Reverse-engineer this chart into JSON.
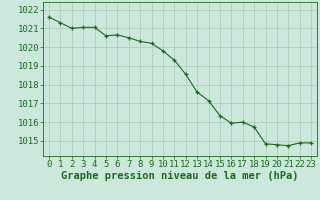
{
  "x": [
    0,
    1,
    2,
    3,
    4,
    5,
    6,
    7,
    8,
    9,
    10,
    11,
    12,
    13,
    14,
    15,
    16,
    17,
    18,
    19,
    20,
    21,
    22,
    23
  ],
  "y": [
    1021.6,
    1021.3,
    1021.0,
    1021.05,
    1021.05,
    1020.6,
    1020.65,
    1020.5,
    1020.3,
    1020.2,
    1019.8,
    1019.3,
    1018.55,
    1017.6,
    1017.15,
    1016.35,
    1015.95,
    1016.0,
    1015.75,
    1014.85,
    1014.8,
    1014.75,
    1014.9,
    1014.9
  ],
  "line_color": "#1a6b1a",
  "marker_color": "#1a6b1a",
  "bg_color": "#cce8dc",
  "grid_color": "#aac8b8",
  "ylabel_ticks": [
    1015,
    1016,
    1017,
    1018,
    1019,
    1020,
    1021,
    1022
  ],
  "xlabel": "Graphe pression niveau de la mer (hPa)",
  "xlabel_fontsize": 7.5,
  "tick_fontsize": 6.5,
  "ylim": [
    1014.2,
    1022.4
  ],
  "xlim": [
    -0.5,
    23.5
  ]
}
